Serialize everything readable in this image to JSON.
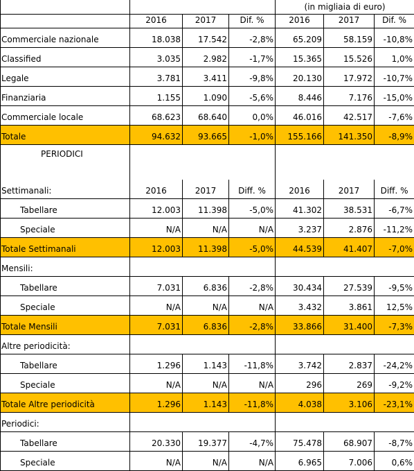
{
  "header": {
    "unit_note": "(in migliaia di euro)",
    "columns": [
      "2016",
      "2017",
      "Dif. %",
      "2016",
      "2017",
      "Dif. %"
    ]
  },
  "quotidiani": {
    "rows": [
      {
        "label": "Commerciale nazionale",
        "values": [
          "18.038",
          "17.542",
          "-2,8%",
          "65.209",
          "58.159",
          "-10,8%"
        ]
      },
      {
        "label": "Classified",
        "values": [
          "3.035",
          "2.982",
          "-1,7%",
          "15.365",
          "15.526",
          "1,0%"
        ]
      },
      {
        "label": "Legale",
        "values": [
          "3.781",
          "3.411",
          "-9,8%",
          "20.130",
          "17.972",
          "-10,7%"
        ]
      },
      {
        "label": "Finanziaria",
        "values": [
          "1.155",
          "1.090",
          "-5,6%",
          "8.446",
          "7.176",
          "-15,0%"
        ]
      },
      {
        "label": "Commerciale locale",
        "values": [
          "68.623",
          "68.640",
          "0,0%",
          "46.016",
          "42.517",
          "-7,6%"
        ]
      }
    ],
    "total": {
      "label": "Totale",
      "values": [
        "94.632",
        "93.665",
        "-1,0%",
        "155.166",
        "141.350",
        "-8,9%"
      ]
    }
  },
  "periodici": {
    "title": "PERIODICI",
    "sections": [
      {
        "title": "Settimanali:",
        "columns": [
          "2016",
          "2017",
          "Diff. %",
          "2016",
          "2017",
          "Diff. %"
        ],
        "rows": [
          {
            "label": "Tabellare",
            "values": [
              "12.003",
              "11.398",
              "-5,0%",
              "41.302",
              "38.531",
              "-6,7%"
            ]
          },
          {
            "label": "Speciale",
            "values": [
              "N/A",
              "N/A",
              "N/A",
              "3.237",
              "2.876",
              "-11,2%"
            ]
          }
        ],
        "total": {
          "label": "Totale Settimanali",
          "values": [
            "12.003",
            "11.398",
            "-5,0%",
            "44.539",
            "41.407",
            "-7,0%"
          ]
        }
      },
      {
        "title": "Mensili:",
        "rows": [
          {
            "label": "Tabellare",
            "values": [
              "7.031",
              "6.836",
              "-2,8%",
              "30.434",
              "27.539",
              "-9,5%"
            ]
          },
          {
            "label": "Speciale",
            "values": [
              "N/A",
              "N/A",
              "N/A",
              "3.432",
              "3.861",
              "12,5%"
            ]
          }
        ],
        "total": {
          "label": "Totale Mensili",
          "values": [
            "7.031",
            "6.836",
            "-2,8%",
            "33.866",
            "31.400",
            "-7,3%"
          ]
        }
      },
      {
        "title": "Altre periodicità:",
        "rows": [
          {
            "label": "Tabellare",
            "values": [
              "1.296",
              "1.143",
              "-11,8%",
              "3.742",
              "2.837",
              "-24,2%"
            ]
          },
          {
            "label": "Speciale",
            "values": [
              "N/A",
              "N/A",
              "N/A",
              "296",
              "269",
              "-9,2%"
            ]
          }
        ],
        "total": {
          "label": "Totale Altre periodicità",
          "values": [
            "1.296",
            "1.143",
            "-11,8%",
            "4.038",
            "3.106",
            "-23,1%"
          ]
        }
      },
      {
        "title": "Periodici:",
        "rows": [
          {
            "label": "Tabellare",
            "values": [
              "20.330",
              "19.377",
              "-4,7%",
              "75.478",
              "68.907",
              "-8,7%"
            ]
          },
          {
            "label": "Speciale",
            "values": [
              "N/A",
              "N/A",
              "N/A",
              "6.965",
              "7.006",
              "0,6%"
            ]
          }
        ]
      }
    ]
  }
}
